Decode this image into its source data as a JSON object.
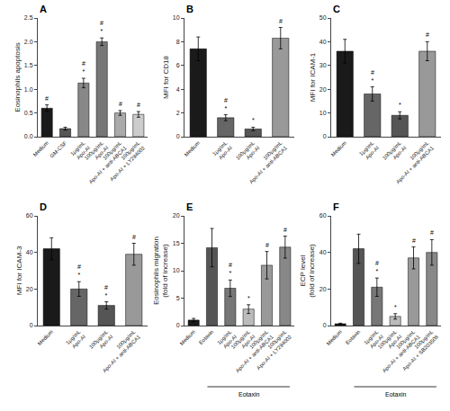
{
  "chart_data": [
    {
      "type": "bar",
      "title": "A",
      "ylabel": "Eosinophils apoptosis",
      "categories": [
        "Medium",
        "GM-CSF",
        "1μg/mL\nApo-AI",
        "100μg/mL\nApo-AI",
        "100μg/mL\nApo-AI + anti-ABCA1",
        "100μg/mL\nApo-AI + LY294002"
      ],
      "values": [
        0.6,
        0.17,
        1.13,
        2.0,
        0.5,
        0.47
      ],
      "errors": [
        0.07,
        0.03,
        0.1,
        0.08,
        0.05,
        0.06
      ],
      "colors": [
        "#1a1a1a",
        "#555555",
        "#888888",
        "#777777",
        "#aaaaaa",
        "#cccccc"
      ],
      "ylim": [
        0,
        2.5
      ],
      "yticks": [
        {
          "value": 0,
          "label": "0.0"
        },
        0.5,
        {
          "value": 1,
          "label": "1.0"
        },
        1.5,
        {
          "value": 2,
          "label": "2.0"
        },
        2.5
      ],
      "grid": false,
      "annotations": [
        {
          "category": "Medium",
          "text": "#"
        },
        {
          "category": "1μg/mL\nApo-AI",
          "text": "#\n*"
        },
        {
          "category": "100μg/mL\nApo-AI",
          "text": "#\n*"
        },
        {
          "category": "100μg/mL\nApo-AI + anti-ABCA1",
          "text": "#"
        },
        {
          "category": "100μg/mL\nApo-AI + LY294002",
          "text": "#"
        }
      ]
    },
    {
      "type": "bar",
      "title": "B",
      "ylabel": "MFI for CD18",
      "categories": [
        "Medium",
        "1μg/mL\nApo-AI",
        "100μg/mL\nApo-AI",
        "100μg/mL\nApo-AI + anti-ABCA1"
      ],
      "values": [
        7.4,
        1.6,
        0.65,
        8.3
      ],
      "errors": [
        1.0,
        0.25,
        0.15,
        0.9
      ],
      "colors": [
        "#1a1a1a",
        "#666666",
        "#555555",
        "#999999"
      ],
      "ylim": [
        0,
        10
      ],
      "yticks": [
        0,
        2,
        4,
        6,
        8,
        10
      ],
      "grid": false,
      "annotations": [
        {
          "category": "1μg/mL\nApo-AI",
          "text": "#\n*"
        },
        {
          "category": "100μg/mL\nApo-AI",
          "text": "*"
        },
        {
          "category": "100μg/mL\nApo-AI + anti-ABCA1",
          "text": "#"
        }
      ]
    },
    {
      "type": "bar",
      "title": "C",
      "ylabel": "MFI for ICAM-1",
      "categories": [
        "Medium",
        "1μg/mL\nApo-AI",
        "100μg/mL\nApo-AI",
        "100μg/mL\nApo-AI + anti-ABCA1"
      ],
      "values": [
        36,
        18,
        9,
        36
      ],
      "errors": [
        5,
        3,
        1.5,
        4
      ],
      "colors": [
        "#1a1a1a",
        "#666666",
        "#555555",
        "#999999"
      ],
      "ylim": [
        0,
        50
      ],
      "yticks": [
        0,
        10,
        20,
        30,
        40,
        50
      ],
      "grid": false,
      "annotations": [
        {
          "category": "1μg/mL\nApo-AI",
          "text": "#\n*"
        },
        {
          "category": "100μg/mL\nApo-AI",
          "text": "*"
        },
        {
          "category": "100μg/mL\nApo-AI + anti-ABCA1",
          "text": "#"
        }
      ]
    },
    {
      "type": "bar",
      "title": "D",
      "ylabel": "MFI for ICAM-3",
      "categories": [
        "Medium",
        "1μg/mL\nApo-AI",
        "100μg/mL\nApo-AI",
        "100μg/mL\nApo-AI + anti-ABCA1"
      ],
      "values": [
        42,
        20,
        11,
        39
      ],
      "errors": [
        6,
        4,
        2,
        6
      ],
      "colors": [
        "#1a1a1a",
        "#666666",
        "#555555",
        "#999999"
      ],
      "ylim": [
        0,
        60
      ],
      "yticks": [
        0,
        20,
        40,
        60
      ],
      "grid": false,
      "annotations": [
        {
          "category": "1μg/mL\nApo-AI",
          "text": "#\n*"
        },
        {
          "category": "100μg/mL\nApo-AI",
          "text": "#\n*"
        },
        {
          "category": "100μg/mL\nApo-AI + anti-ABCA1",
          "text": "#"
        }
      ]
    },
    {
      "type": "bar",
      "title": "E",
      "ylabel": "Eosinophils migration\n(fold of increase)",
      "categories": [
        "Medium",
        "Eotaxin",
        "1μg/mL\nApo-AI",
        "100μg/mL\nApo-AI",
        "100μg/mL\nApo-AI + anti-ABCA1",
        "100μg/mL\nApo-AI + LY294002"
      ],
      "values": [
        1.0,
        14.2,
        6.8,
        3.0,
        11.0,
        14.3
      ],
      "errors": [
        0.3,
        3.5,
        1.5,
        0.8,
        2.5,
        2.0
      ],
      "colors": [
        "#1a1a1a",
        "#555555",
        "#777777",
        "#bbbbbb",
        "#999999",
        "#888888"
      ],
      "ylim": [
        0,
        20
      ],
      "yticks": [
        0,
        5,
        10,
        15,
        20
      ],
      "grid": false,
      "annotations": [
        {
          "category": "1μg/mL\nApo-AI",
          "text": "#\n*"
        },
        {
          "category": "100μg/mL\nApo-AI",
          "text": "*"
        },
        {
          "category": "100μg/mL\nApo-AI + anti-ABCA1",
          "text": "#"
        },
        {
          "category": "100μg/mL\nApo-AI + LY294002",
          "text": "#"
        },
        {
          "text": "Eotaxin",
          "from": "Eotaxin",
          "to": "100μg/mL\nApo-AI + LY294002"
        }
      ]
    },
    {
      "type": "bar",
      "title": "F",
      "ylabel": "ECP level\n(fold of increase)",
      "categories": [
        "Medium",
        "Eotaxin",
        "1μg/mL\nApo-AI",
        "100μg/mL\nApo-AI",
        "100μg/mL\nApo-AI + anti-ABCA1",
        "100μg/mL\nApo-AI + SB203508"
      ],
      "values": [
        1.0,
        42,
        21,
        5,
        37,
        40
      ],
      "errors": [
        0.3,
        8,
        5,
        1.5,
        6,
        7
      ],
      "colors": [
        "#1a1a1a",
        "#555555",
        "#777777",
        "#bbbbbb",
        "#999999",
        "#888888"
      ],
      "ylim": [
        0,
        60
      ],
      "yticks": [
        0,
        20,
        40,
        60
      ],
      "grid": false,
      "annotations": [
        {
          "category": "1μg/mL\nApo-AI",
          "text": "#\n*"
        },
        {
          "category": "100μg/mL\nApo-AI",
          "text": "*"
        },
        {
          "category": "100μg/mL\nApo-AI + anti-ABCA1",
          "text": "#"
        },
        {
          "category": "100μg/mL\nApo-AI + SB203508",
          "text": "#"
        },
        {
          "text": "Eotaxin",
          "from": "Eotaxin",
          "to": "100μg/mL\nApo-AI + SB203508"
        }
      ]
    }
  ]
}
